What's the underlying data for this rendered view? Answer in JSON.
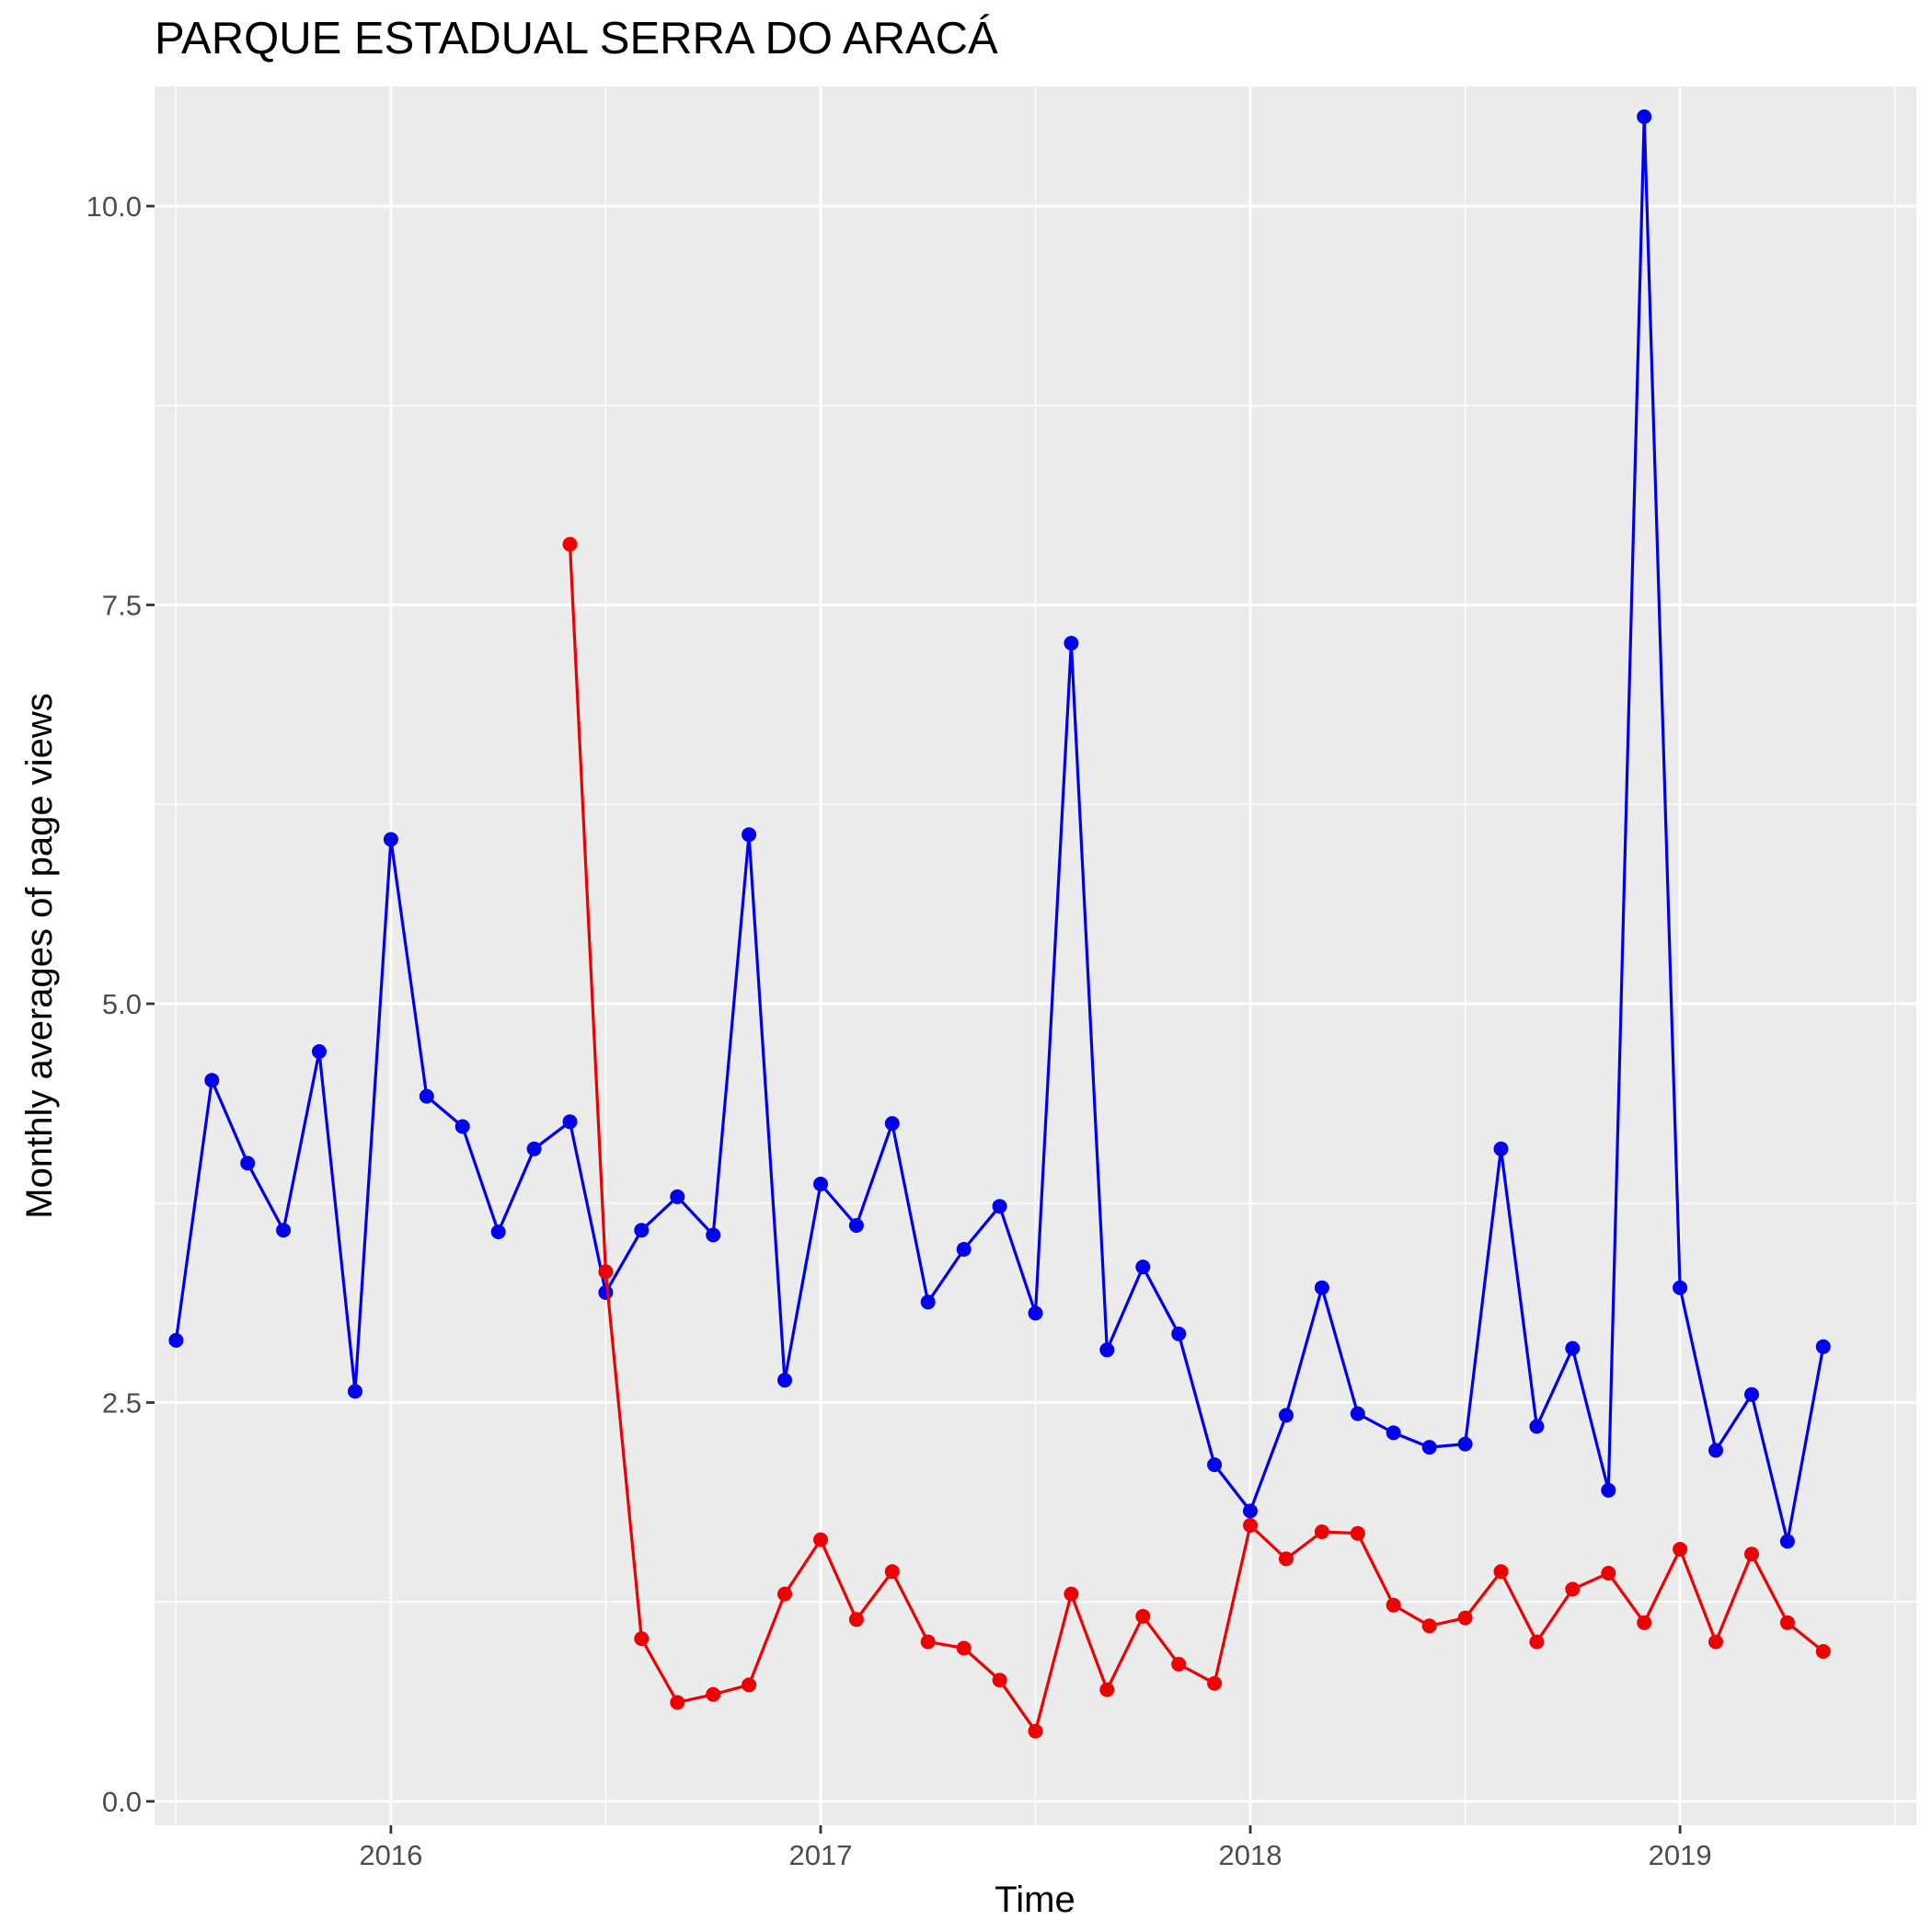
{
  "chart_data": {
    "type": "line",
    "title": "PARQUE ESTADUAL SERRA DO ARACÁ",
    "xlabel": "Time",
    "ylabel": "Monthly averages of page views",
    "xlim": [
      2015.45,
      2019.55
    ],
    "ylim": [
      -0.15,
      10.75
    ],
    "x_ticks": [
      2016,
      2017,
      2018,
      2019
    ],
    "x_tick_labels": [
      "2016",
      "2017",
      "2018",
      "2019"
    ],
    "y_ticks": [
      0,
      2.5,
      5,
      7.5,
      10
    ],
    "y_tick_labels": [
      "0.0",
      "2.5",
      "5.0",
      "7.5",
      "10.0"
    ],
    "grid": true,
    "legend": "none",
    "series": [
      {
        "color": "#0000ee",
        "points": [
          [
            "2015-07",
            2.89
          ],
          [
            "2015-08",
            4.52
          ],
          [
            "2015-09",
            4.0
          ],
          [
            "2015-10",
            3.58
          ],
          [
            "2015-11",
            4.7
          ],
          [
            "2015-12",
            2.57
          ],
          [
            "2016-01",
            6.03
          ],
          [
            "2016-02",
            4.42
          ],
          [
            "2016-03",
            4.23
          ],
          [
            "2016-04",
            3.57
          ],
          [
            "2016-05",
            4.09
          ],
          [
            "2016-06",
            4.26
          ],
          [
            "2016-07",
            3.19
          ],
          [
            "2016-08",
            3.58
          ],
          [
            "2016-09",
            3.79
          ],
          [
            "2016-10",
            3.55
          ],
          [
            "2016-11",
            6.06
          ],
          [
            "2016-12",
            2.64
          ],
          [
            "2017-01",
            3.87
          ],
          [
            "2017-02",
            3.61
          ],
          [
            "2017-03",
            4.25
          ],
          [
            "2017-04",
            3.13
          ],
          [
            "2017-05",
            3.46
          ],
          [
            "2017-06",
            3.73
          ],
          [
            "2017-07",
            3.06
          ],
          [
            "2017-08",
            7.26
          ],
          [
            "2017-09",
            2.83
          ],
          [
            "2017-10",
            3.35
          ],
          [
            "2017-11",
            2.93
          ],
          [
            "2017-12",
            2.11
          ],
          [
            "2018-01",
            1.82
          ],
          [
            "2018-02",
            2.42
          ],
          [
            "2018-03",
            3.22
          ],
          [
            "2018-04",
            2.43
          ],
          [
            "2018-05",
            2.31
          ],
          [
            "2018-06",
            2.22
          ],
          [
            "2018-07",
            2.24
          ],
          [
            "2018-08",
            4.09
          ],
          [
            "2018-09",
            2.35
          ],
          [
            "2018-10",
            2.84
          ],
          [
            "2018-11",
            1.95
          ],
          [
            "2018-12",
            10.56
          ],
          [
            "2019-01",
            3.22
          ],
          [
            "2019-02",
            2.2
          ],
          [
            "2019-03",
            2.55
          ],
          [
            "2019-04",
            1.63
          ],
          [
            "2019-05",
            2.85
          ]
        ]
      },
      {
        "color": "#ee0000",
        "points": [
          [
            "2016-06",
            7.88
          ],
          [
            "2016-07",
            3.32
          ],
          [
            "2016-08",
            1.02
          ],
          [
            "2016-09",
            0.62
          ],
          [
            "2016-10",
            0.67
          ],
          [
            "2016-11",
            0.73
          ],
          [
            "2016-12",
            1.3
          ],
          [
            "2017-01",
            1.64
          ],
          [
            "2017-02",
            1.14
          ],
          [
            "2017-03",
            1.44
          ],
          [
            "2017-04",
            1.0
          ],
          [
            "2017-05",
            0.96
          ],
          [
            "2017-06",
            0.76
          ],
          [
            "2017-07",
            0.44
          ],
          [
            "2017-08",
            1.3
          ],
          [
            "2017-09",
            0.7
          ],
          [
            "2017-10",
            1.16
          ],
          [
            "2017-11",
            0.86
          ],
          [
            "2017-12",
            0.74
          ],
          [
            "2018-01",
            1.73
          ],
          [
            "2018-02",
            1.52
          ],
          [
            "2018-03",
            1.69
          ],
          [
            "2018-04",
            1.68
          ],
          [
            "2018-05",
            1.23
          ],
          [
            "2018-06",
            1.1
          ],
          [
            "2018-07",
            1.15
          ],
          [
            "2018-08",
            1.44
          ],
          [
            "2018-09",
            1.0
          ],
          [
            "2018-10",
            1.33
          ],
          [
            "2018-11",
            1.43
          ],
          [
            "2018-12",
            1.12
          ],
          [
            "2019-01",
            1.58
          ],
          [
            "2019-02",
            1.0
          ],
          [
            "2019-03",
            1.55
          ],
          [
            "2019-04",
            1.12
          ],
          [
            "2019-05",
            0.94
          ]
        ]
      }
    ]
  }
}
